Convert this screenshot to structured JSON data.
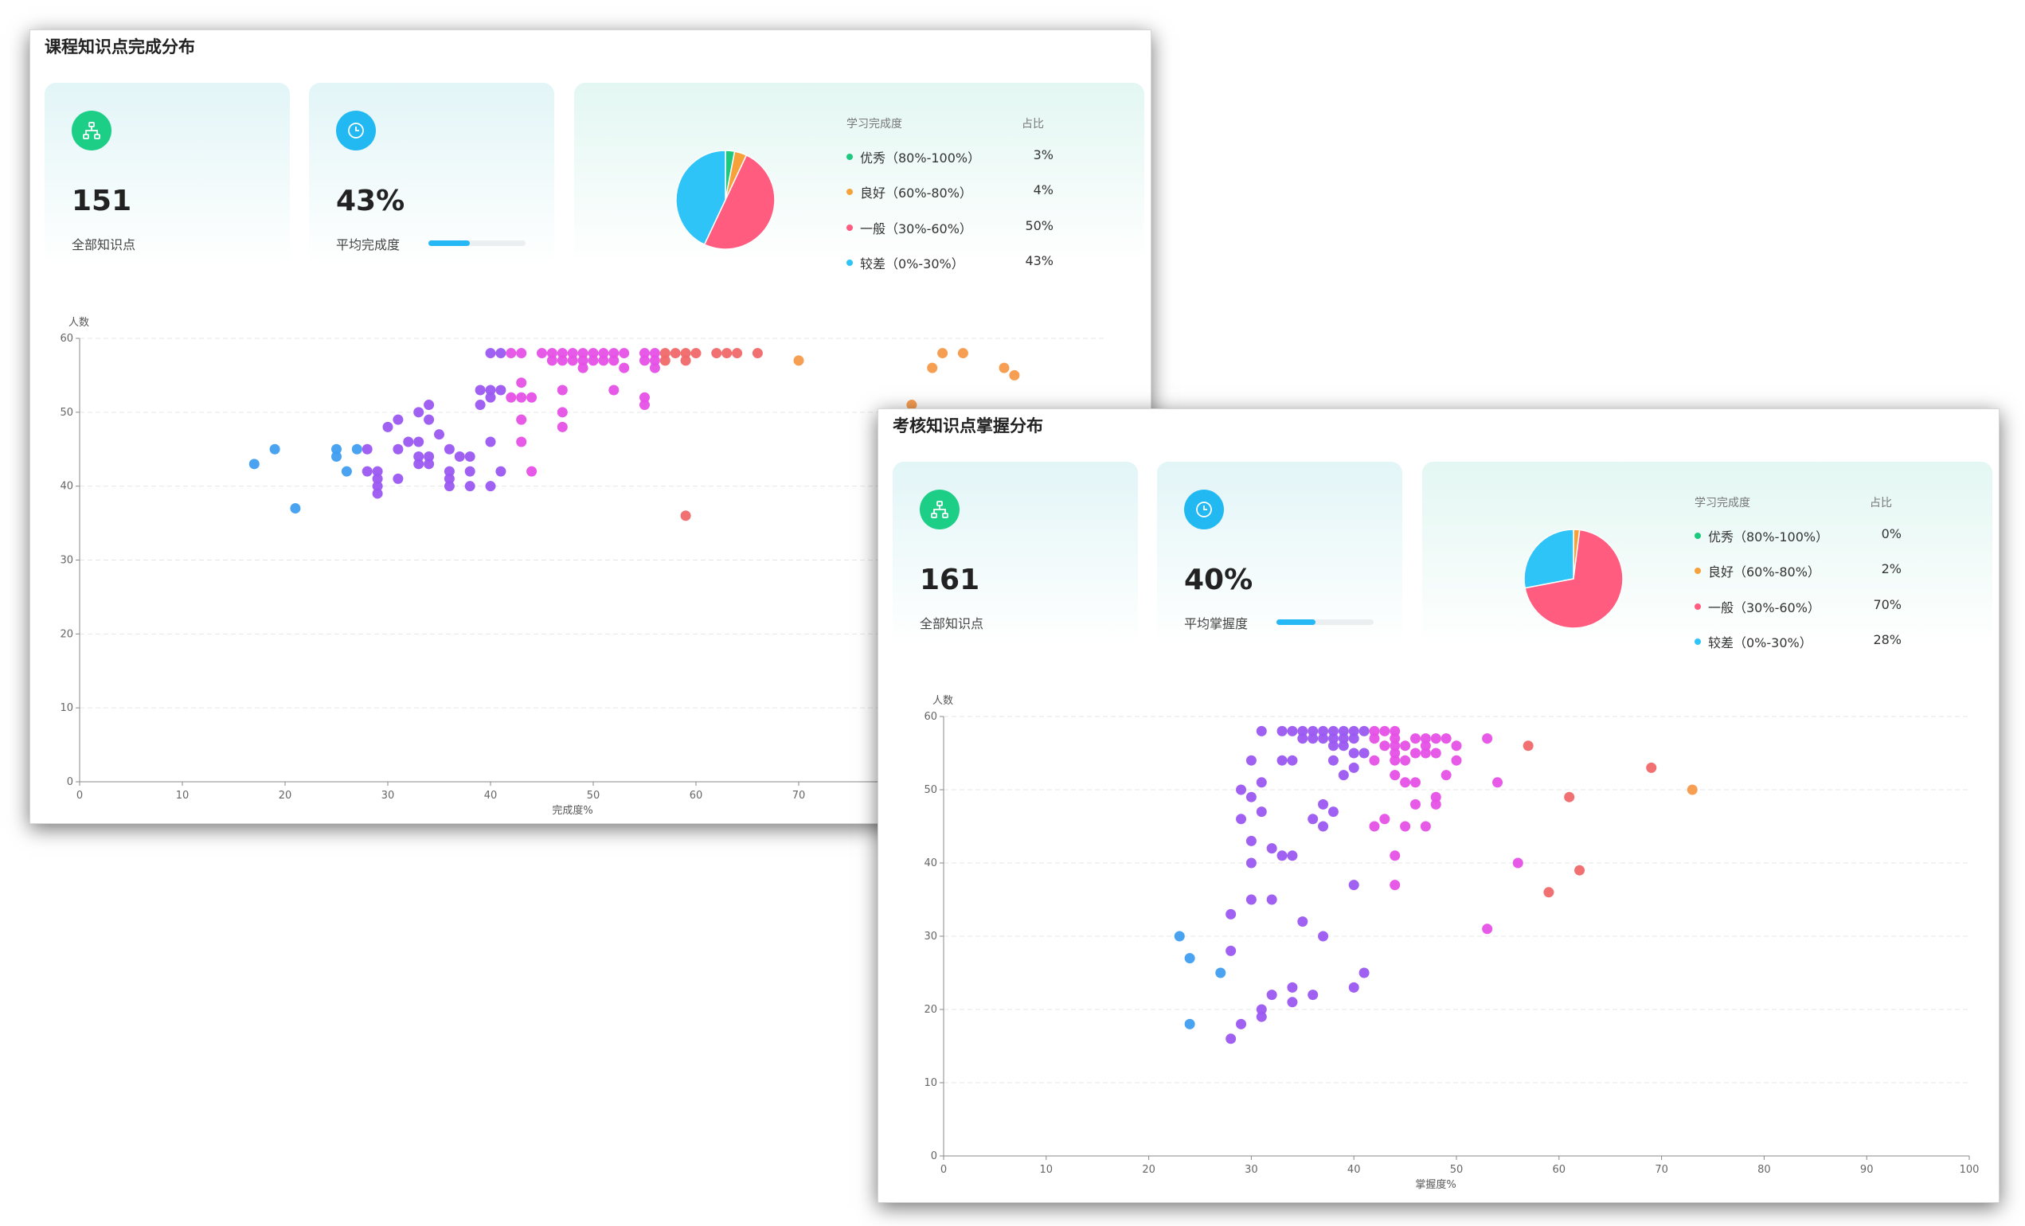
{
  "panels": [
    {
      "id": "p1",
      "title": "课程知识点完成分布",
      "total_value": "151",
      "total_label": "全部知识点",
      "avg_value": "43%",
      "avg_label": "平均完成度",
      "avg_progress": 0.43,
      "legend_header": "学习完成度",
      "legend_ratio_header": "占比",
      "distribution": [
        {
          "label": "优秀（80%-100%）",
          "pct": "3%",
          "value": 3,
          "color": "#1ec97f"
        },
        {
          "label": "良好（60%-80%）",
          "pct": "4%",
          "value": 4,
          "color": "#f7a13a"
        },
        {
          "label": "一般（30%-60%）",
          "pct": "50%",
          "value": 50,
          "color": "#ff5c80"
        },
        {
          "label": "较差（0%-30%）",
          "pct": "43%",
          "value": 43,
          "color": "#2fc4f8"
        }
      ],
      "chart_data": {
        "type": "scatter",
        "xlabel": "完成度%",
        "ylabel": "人数",
        "xlim": [
          0,
          100
        ],
        "ylim": [
          0,
          60
        ],
        "x_ticks": [
          "0",
          "10",
          "20",
          "30",
          "40",
          "50",
          "60",
          "70"
        ],
        "y_ticks": [
          "0",
          "10",
          "20",
          "30",
          "40",
          "50",
          "60"
        ],
        "grid": true,
        "points": [
          [
            17,
            43
          ],
          [
            19,
            45
          ],
          [
            21,
            37
          ],
          [
            25,
            45
          ],
          [
            25,
            44
          ],
          [
            26,
            42
          ],
          [
            27,
            45
          ],
          [
            28,
            45
          ],
          [
            28,
            42
          ],
          [
            29,
            42
          ],
          [
            29,
            41
          ],
          [
            29,
            40
          ],
          [
            29,
            39
          ],
          [
            30,
            48
          ],
          [
            31,
            49
          ],
          [
            31,
            45
          ],
          [
            31,
            41
          ],
          [
            32,
            46
          ],
          [
            33,
            50
          ],
          [
            33,
            46
          ],
          [
            33,
            44
          ],
          [
            33,
            43
          ],
          [
            34,
            51
          ],
          [
            34,
            49
          ],
          [
            34,
            44
          ],
          [
            34,
            43
          ],
          [
            35,
            47
          ],
          [
            36,
            45
          ],
          [
            36,
            42
          ],
          [
            36,
            41
          ],
          [
            36,
            40
          ],
          [
            37,
            44
          ],
          [
            38,
            44
          ],
          [
            38,
            42
          ],
          [
            38,
            40
          ],
          [
            39,
            53
          ],
          [
            39,
            51
          ],
          [
            40,
            58
          ],
          [
            40,
            53
          ],
          [
            40,
            52
          ],
          [
            40,
            46
          ],
          [
            40,
            40
          ],
          [
            41,
            58
          ],
          [
            41,
            53
          ],
          [
            41,
            42
          ],
          [
            42,
            58
          ],
          [
            42,
            52
          ],
          [
            43,
            58
          ],
          [
            43,
            54
          ],
          [
            43,
            52
          ],
          [
            43,
            49
          ],
          [
            43,
            46
          ],
          [
            44,
            52
          ],
          [
            44,
            42
          ],
          [
            45,
            58
          ],
          [
            46,
            58
          ],
          [
            46,
            57
          ],
          [
            47,
            58
          ],
          [
            47,
            57
          ],
          [
            47,
            53
          ],
          [
            47,
            50
          ],
          [
            47,
            48
          ],
          [
            48,
            58
          ],
          [
            48,
            57
          ],
          [
            49,
            58
          ],
          [
            49,
            57
          ],
          [
            49,
            56
          ],
          [
            50,
            58
          ],
          [
            50,
            57
          ],
          [
            51,
            58
          ],
          [
            51,
            57
          ],
          [
            52,
            58
          ],
          [
            52,
            57
          ],
          [
            52,
            53
          ],
          [
            53,
            58
          ],
          [
            53,
            56
          ],
          [
            55,
            58
          ],
          [
            55,
            57
          ],
          [
            55,
            52
          ],
          [
            55,
            51
          ],
          [
            56,
            58
          ],
          [
            56,
            57
          ],
          [
            56,
            56
          ],
          [
            57,
            58
          ],
          [
            57,
            57
          ],
          [
            58,
            58
          ],
          [
            59,
            58
          ],
          [
            59,
            57
          ],
          [
            60,
            58
          ],
          [
            59,
            36
          ],
          [
            62,
            58
          ],
          [
            63,
            58
          ],
          [
            64,
            58
          ],
          [
            66,
            58
          ],
          [
            70,
            57
          ],
          [
            81,
            51
          ],
          [
            83,
            56
          ],
          [
            84,
            58
          ],
          [
            86,
            58
          ],
          [
            90,
            56
          ],
          [
            91,
            55
          ]
        ]
      }
    },
    {
      "id": "p2",
      "title": "考核知识点掌握分布",
      "total_value": "161",
      "total_label": "全部知识点",
      "avg_value": "40%",
      "avg_label": "平均掌握度",
      "avg_progress": 0.4,
      "legend_header": "学习完成度",
      "legend_ratio_header": "占比",
      "distribution": [
        {
          "label": "优秀（80%-100%）",
          "pct": "0%",
          "value": 0,
          "color": "#1ec97f"
        },
        {
          "label": "良好（60%-80%）",
          "pct": "2%",
          "value": 2,
          "color": "#f7a13a"
        },
        {
          "label": "一般（30%-60%）",
          "pct": "70%",
          "value": 70,
          "color": "#ff5c80"
        },
        {
          "label": "较差（0%-30%）",
          "pct": "28%",
          "value": 28,
          "color": "#2fc4f8"
        }
      ],
      "chart_data": {
        "type": "scatter",
        "xlabel": "掌握度%",
        "ylabel": "人数",
        "xlim": [
          0,
          100
        ],
        "ylim": [
          0,
          60
        ],
        "x_ticks": [
          "0",
          "10",
          "20",
          "30",
          "40",
          "50",
          "60",
          "70",
          "80",
          "90",
          "100"
        ],
        "y_ticks": [
          "0",
          "10",
          "20",
          "30",
          "40",
          "50",
          "60"
        ],
        "grid": true,
        "points": [
          [
            23,
            30
          ],
          [
            24,
            27
          ],
          [
            24,
            18
          ],
          [
            27,
            25
          ],
          [
            28,
            33
          ],
          [
            28,
            28
          ],
          [
            28,
            16
          ],
          [
            29,
            50
          ],
          [
            29,
            46
          ],
          [
            29,
            18
          ],
          [
            30,
            54
          ],
          [
            30,
            49
          ],
          [
            30,
            43
          ],
          [
            30,
            40
          ],
          [
            30,
            35
          ],
          [
            31,
            51
          ],
          [
            31,
            47
          ],
          [
            31,
            20
          ],
          [
            31,
            19
          ],
          [
            32,
            42
          ],
          [
            32,
            35
          ],
          [
            32,
            22
          ],
          [
            33,
            41
          ],
          [
            31,
            58
          ],
          [
            33,
            58
          ],
          [
            33,
            54
          ],
          [
            34,
            58
          ],
          [
            34,
            54
          ],
          [
            34,
            41
          ],
          [
            34,
            23
          ],
          [
            34,
            21
          ],
          [
            35,
            58
          ],
          [
            35,
            57
          ],
          [
            35,
            32
          ],
          [
            36,
            58
          ],
          [
            36,
            57
          ],
          [
            36,
            46
          ],
          [
            36,
            22
          ],
          [
            37,
            58
          ],
          [
            37,
            57
          ],
          [
            37,
            48
          ],
          [
            37,
            45
          ],
          [
            37,
            30
          ],
          [
            38,
            58
          ],
          [
            38,
            57
          ],
          [
            38,
            56
          ],
          [
            38,
            54
          ],
          [
            38,
            47
          ],
          [
            39,
            58
          ],
          [
            39,
            57
          ],
          [
            39,
            56
          ],
          [
            39,
            52
          ],
          [
            40,
            58
          ],
          [
            40,
            57
          ],
          [
            40,
            55
          ],
          [
            40,
            53
          ],
          [
            40,
            37
          ],
          [
            40,
            23
          ],
          [
            41,
            58
          ],
          [
            41,
            55
          ],
          [
            41,
            25
          ],
          [
            42,
            58
          ],
          [
            42,
            57
          ],
          [
            42,
            54
          ],
          [
            42,
            45
          ],
          [
            43,
            58
          ],
          [
            43,
            56
          ],
          [
            43,
            46
          ],
          [
            44,
            58
          ],
          [
            44,
            57
          ],
          [
            44,
            56
          ],
          [
            44,
            55
          ],
          [
            44,
            54
          ],
          [
            44,
            52
          ],
          [
            44,
            41
          ],
          [
            44,
            37
          ],
          [
            45,
            56
          ],
          [
            45,
            54
          ],
          [
            45,
            51
          ],
          [
            45,
            45
          ],
          [
            46,
            57
          ],
          [
            46,
            55
          ],
          [
            46,
            51
          ],
          [
            46,
            48
          ],
          [
            47,
            57
          ],
          [
            47,
            56
          ],
          [
            47,
            55
          ],
          [
            47,
            45
          ],
          [
            48,
            57
          ],
          [
            48,
            55
          ],
          [
            48,
            49
          ],
          [
            48,
            48
          ],
          [
            49,
            57
          ],
          [
            49,
            52
          ],
          [
            50,
            56
          ],
          [
            50,
            54
          ],
          [
            53,
            57
          ],
          [
            53,
            31
          ],
          [
            54,
            51
          ],
          [
            56,
            40
          ],
          [
            57,
            56
          ],
          [
            59,
            36
          ],
          [
            61,
            49
          ],
          [
            62,
            39
          ],
          [
            69,
            53
          ],
          [
            73,
            50
          ]
        ]
      }
    }
  ]
}
